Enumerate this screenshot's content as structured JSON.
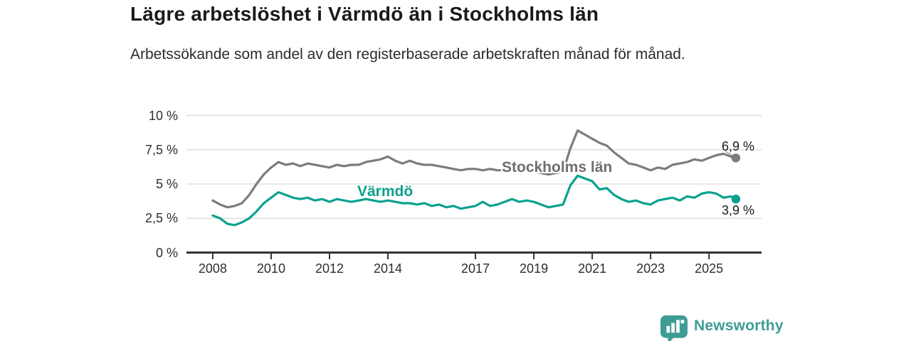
{
  "header": {
    "title": "Lägre arbetslöshet i Värmdö än i Stockholms län",
    "subtitle": "Arbetssökande som andel av den registerbaserade arbetskraften månad för månad."
  },
  "footer": {
    "brand": "Newsworthy"
  },
  "colors": {
    "varmdo": "#0ba18e",
    "stockholm": "#7c7c7c",
    "stockholm_label": "#6e6e6e",
    "end_dot_stockholm": "#7c7c7c",
    "end_dot_varmdo": "#0ba18e",
    "brand": "#3f9c95",
    "grid": "#d9d9d9",
    "axis": "#333333",
    "tick_text": "#2e2e2e",
    "title_text": "#1a1a1a"
  },
  "chart_data": {
    "type": "line",
    "title": "Lägre arbetslöshet i Värmdö än i Stockholms län",
    "xlabel": "",
    "ylabel": "Arbetssökande som andel av den registerbaserade arbetskraften (%)",
    "x_domain": [
      2007.1,
      2026.8
    ],
    "y_domain": [
      0,
      10
    ],
    "grid": true,
    "legend_position": "inline-labels",
    "decimal_style": "comma",
    "y_ticks": [
      {
        "value": 0,
        "label": "0 %"
      },
      {
        "value": 2.5,
        "label": "2,5 %"
      },
      {
        "value": 5,
        "label": "5 %"
      },
      {
        "value": 7.5,
        "label": "7,5 %"
      },
      {
        "value": 10,
        "label": "10 %"
      }
    ],
    "x_ticks": [
      {
        "value": 2008,
        "label": "2008"
      },
      {
        "value": 2010,
        "label": "2010"
      },
      {
        "value": 2012,
        "label": "2012"
      },
      {
        "value": 2014,
        "label": "2014"
      },
      {
        "value": 2017,
        "label": "2017"
      },
      {
        "value": 2019,
        "label": "2019"
      },
      {
        "value": 2021,
        "label": "2021"
      },
      {
        "value": 2023,
        "label": "2023"
      },
      {
        "value": 2025,
        "label": "2025"
      }
    ],
    "x": [
      2008.0,
      2008.25,
      2008.5,
      2008.75,
      2009.0,
      2009.25,
      2009.5,
      2009.75,
      2010.0,
      2010.25,
      2010.5,
      2010.75,
      2011.0,
      2011.25,
      2011.5,
      2011.75,
      2012.0,
      2012.25,
      2012.5,
      2012.75,
      2013.0,
      2013.25,
      2013.5,
      2013.75,
      2014.0,
      2014.25,
      2014.5,
      2014.75,
      2015.0,
      2015.25,
      2015.5,
      2015.75,
      2016.0,
      2016.25,
      2016.5,
      2016.75,
      2017.0,
      2017.25,
      2017.5,
      2017.75,
      2018.0,
      2018.25,
      2018.5,
      2018.75,
      2019.0,
      2019.25,
      2019.5,
      2019.75,
      2020.0,
      2020.25,
      2020.5,
      2020.75,
      2021.0,
      2021.25,
      2021.5,
      2021.75,
      2022.0,
      2022.25,
      2022.5,
      2022.75,
      2023.0,
      2023.25,
      2023.5,
      2023.75,
      2024.0,
      2024.25,
      2024.5,
      2024.75,
      2025.0,
      2025.25,
      2025.5,
      2025.75,
      2025.92
    ],
    "series": [
      {
        "name": "Stockholms län",
        "color": "#7c7c7c",
        "end_label": "6,9 %",
        "end_value": 6.9,
        "values": [
          3.8,
          3.5,
          3.3,
          3.4,
          3.6,
          4.2,
          5.0,
          5.7,
          6.2,
          6.6,
          6.4,
          6.5,
          6.3,
          6.5,
          6.4,
          6.3,
          6.2,
          6.4,
          6.3,
          6.4,
          6.4,
          6.6,
          6.7,
          6.8,
          7.0,
          6.7,
          6.5,
          6.7,
          6.5,
          6.4,
          6.4,
          6.3,
          6.2,
          6.1,
          6.0,
          6.1,
          6.1,
          6.0,
          6.1,
          6.0,
          6.0,
          6.1,
          5.9,
          6.0,
          5.9,
          5.8,
          5.7,
          5.8,
          5.9,
          7.6,
          8.9,
          8.6,
          8.3,
          8.0,
          7.8,
          7.3,
          6.9,
          6.5,
          6.4,
          6.2,
          6.0,
          6.2,
          6.1,
          6.4,
          6.5,
          6.6,
          6.8,
          6.7,
          6.9,
          7.1,
          7.2,
          7.0,
          6.9
        ]
      },
      {
        "name": "Värmdö",
        "color": "#0ba18e",
        "end_label": "3,9 %",
        "end_value": 3.9,
        "values": [
          2.7,
          2.5,
          2.1,
          2.0,
          2.2,
          2.5,
          3.0,
          3.6,
          4.0,
          4.4,
          4.2,
          4.0,
          3.9,
          4.0,
          3.8,
          3.9,
          3.7,
          3.9,
          3.8,
          3.7,
          3.8,
          3.9,
          3.8,
          3.7,
          3.8,
          3.7,
          3.6,
          3.6,
          3.5,
          3.6,
          3.4,
          3.5,
          3.3,
          3.4,
          3.2,
          3.3,
          3.4,
          3.7,
          3.4,
          3.5,
          3.7,
          3.9,
          3.7,
          3.8,
          3.7,
          3.5,
          3.3,
          3.4,
          3.5,
          4.9,
          5.6,
          5.4,
          5.2,
          4.6,
          4.7,
          4.2,
          3.9,
          3.7,
          3.8,
          3.6,
          3.5,
          3.8,
          3.9,
          4.0,
          3.8,
          4.1,
          4.0,
          4.3,
          4.4,
          4.3,
          4.0,
          4.1,
          3.9
        ]
      }
    ]
  }
}
